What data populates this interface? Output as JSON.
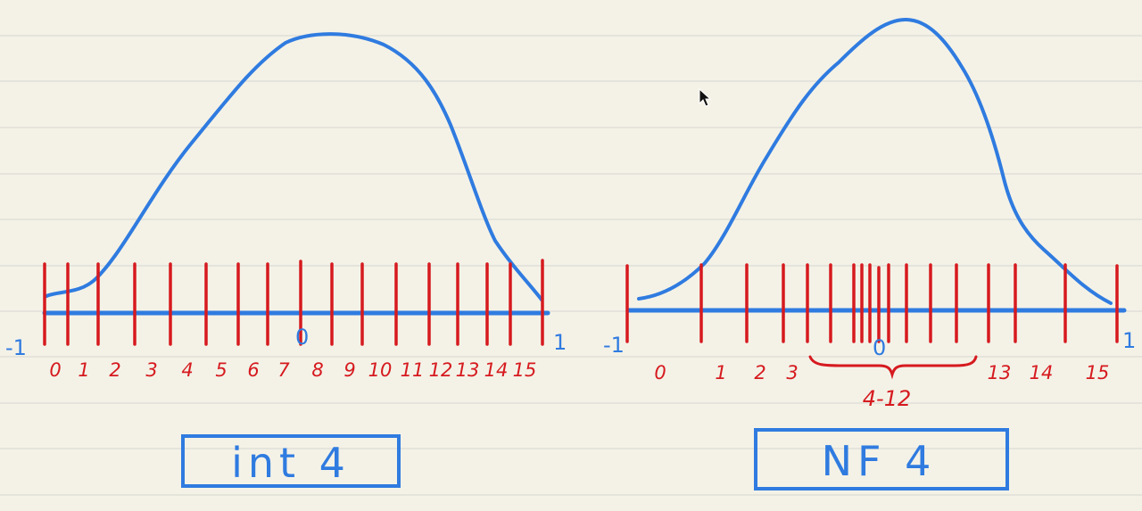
{
  "colors": {
    "background": "#f4f2e7",
    "ruled_line": "#dcdcd6",
    "curve": "#2f7be0",
    "tick": "#d61a1f"
  },
  "left_panel": {
    "title": "int 4",
    "axis_min_label": "-1",
    "axis_zero_label": "0",
    "axis_max_label": "1",
    "tick_labels": [
      "0",
      "1",
      "2",
      "3",
      "4",
      "5",
      "6",
      "7",
      "8",
      "9",
      "10",
      "11",
      "12",
      "13",
      "14",
      "15"
    ],
    "spacing": "uniform"
  },
  "right_panel": {
    "title": "NF 4",
    "axis_min_label": "-1",
    "axis_zero_label": "0",
    "axis_max_label": "1",
    "tick_labels": [
      "0",
      "1",
      "2",
      "3",
      "13",
      "14",
      "15"
    ],
    "brace_label": "4-12",
    "spacing": "dense near 0"
  }
}
